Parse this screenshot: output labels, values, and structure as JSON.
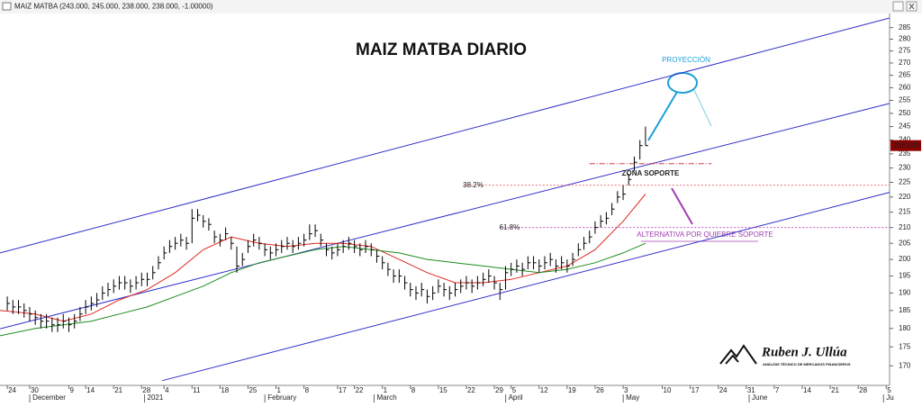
{
  "header": "MAIZ MATBA (243.000, 245.000, 238.000, 238.000, -1.00000)",
  "chart_data": {
    "type": "ohlc",
    "title": "MAIZ MATBA DIARIO",
    "log": true,
    "ylim": [
      165,
      290
    ],
    "yticks": [
      170,
      175,
      180,
      185,
      190,
      195,
      200,
      205,
      210,
      215,
      220,
      225,
      230,
      235,
      240,
      245,
      250,
      255,
      260,
      265,
      270,
      275,
      280,
      285
    ],
    "xlim": [
      -1.3,
      157.6
    ],
    "xticks": [
      {
        "value": 0,
        "label": "24"
      },
      {
        "value": 4,
        "label": "30"
      },
      {
        "value": 11,
        "label": "9"
      },
      {
        "value": 14,
        "label": "14"
      },
      {
        "value": 19,
        "label": "21"
      },
      {
        "value": 24,
        "label": "28"
      },
      {
        "value": 28,
        "label": "4"
      },
      {
        "value": 33,
        "label": "11"
      },
      {
        "value": 38,
        "label": "18"
      },
      {
        "value": 43,
        "label": "25"
      },
      {
        "value": 48,
        "label": "1"
      },
      {
        "value": 53,
        "label": "8"
      },
      {
        "value": 59,
        "label": "17"
      },
      {
        "value": 62,
        "label": "22"
      },
      {
        "value": 67,
        "label": "1"
      },
      {
        "value": 72,
        "label": "8"
      },
      {
        "value": 77,
        "label": "15"
      },
      {
        "value": 82,
        "label": "22"
      },
      {
        "value": 87,
        "label": "29"
      },
      {
        "value": 90,
        "label": "5"
      },
      {
        "value": 95,
        "label": "12"
      },
      {
        "value": 100,
        "label": "19"
      },
      {
        "value": 105,
        "label": "26"
      },
      {
        "value": 110,
        "label": "3"
      },
      {
        "value": 117,
        "label": "10"
      },
      {
        "value": 122,
        "label": "17"
      },
      {
        "value": 127,
        "label": "24"
      },
      {
        "value": 132,
        "label": "31"
      },
      {
        "value": 137,
        "label": "7"
      },
      {
        "value": 142,
        "label": "14"
      },
      {
        "value": 147,
        "label": "21"
      },
      {
        "value": 152,
        "label": "28"
      },
      {
        "value": 157,
        "label": "5"
      }
    ],
    "month_ticks": [
      {
        "value": 4.5,
        "label": "December"
      },
      {
        "value": 25,
        "label": "2021"
      },
      {
        "value": 46.5,
        "label": "February"
      },
      {
        "value": 66,
        "label": "March"
      },
      {
        "value": 89.5,
        "label": "April"
      },
      {
        "value": 110.5,
        "label": "May"
      },
      {
        "value": 133,
        "label": "June"
      },
      {
        "value": 157,
        "label": "Ju"
      }
    ],
    "ohlc": {
      "color": "#000000",
      "high": [
        189,
        188,
        188,
        187,
        186,
        185,
        184,
        184,
        183,
        183,
        184,
        183,
        184,
        186,
        188,
        189,
        190,
        192,
        193,
        194,
        195,
        195,
        194,
        195,
        196,
        196,
        198,
        201,
        204,
        206,
        207,
        208,
        207,
        216,
        216,
        214,
        213,
        209,
        208,
        210,
        207,
        204,
        202,
        206,
        208,
        207,
        205,
        204,
        205,
        206,
        207,
        206,
        207,
        208,
        211,
        211,
        208,
        205,
        204,
        205,
        206,
        207,
        206,
        205,
        206,
        205,
        203,
        201,
        199,
        197,
        197,
        195,
        193,
        192,
        193,
        191,
        192,
        194,
        193,
        192,
        193,
        194,
        195,
        194,
        195,
        196,
        197,
        195,
        193,
        198,
        199,
        200,
        199,
        201,
        201,
        200,
        201,
        202,
        200,
        201,
        200,
        202,
        205,
        207,
        209,
        212,
        214,
        215,
        218,
        222,
        224,
        228,
        234,
        240,
        245
      ],
      "low": [
        185,
        184,
        184,
        183,
        182,
        181,
        180,
        180,
        179,
        179,
        180,
        179,
        180,
        182,
        184,
        185,
        186,
        188,
        189,
        190,
        191,
        191,
        190,
        191,
        192,
        192,
        194,
        197,
        200,
        202,
        203,
        204,
        203,
        205,
        212,
        210,
        209,
        205,
        204,
        206,
        203,
        196,
        198,
        202,
        204,
        203,
        201,
        200,
        201,
        202,
        203,
        202,
        203,
        204,
        206,
        207,
        204,
        201,
        200,
        201,
        202,
        203,
        202,
        201,
        202,
        201,
        199,
        197,
        195,
        193,
        193,
        191,
        189,
        188,
        189,
        187,
        188,
        190,
        189,
        188,
        189,
        190,
        191,
        190,
        191,
        192,
        193,
        191,
        188,
        191,
        195,
        196,
        195,
        197,
        197,
        196,
        197,
        198,
        196,
        197,
        196,
        198,
        201,
        203,
        205,
        208,
        210,
        211,
        214,
        218,
        219,
        224,
        229,
        233,
        238
      ],
      "close": [
        187,
        186,
        186,
        185,
        184,
        183,
        182,
        182,
        181,
        181,
        182,
        181,
        182,
        184,
        186,
        187,
        188,
        190,
        191,
        192,
        193,
        193,
        192,
        193,
        194,
        194,
        196,
        199,
        202,
        204,
        205,
        206,
        205,
        213,
        214,
        212,
        211,
        207,
        206,
        208,
        205,
        198,
        200,
        204,
        206,
        205,
        203,
        202,
        203,
        204,
        205,
        204,
        205,
        206,
        208,
        209,
        206,
        203,
        202,
        203,
        204,
        205,
        204,
        203,
        204,
        203,
        201,
        199,
        197,
        195,
        195,
        193,
        191,
        190,
        191,
        189,
        190,
        192,
        191,
        190,
        191,
        192,
        193,
        192,
        193,
        194,
        195,
        193,
        191,
        196,
        197,
        198,
        197,
        199,
        199,
        198,
        199,
        200,
        198,
        199,
        198,
        200,
        203,
        205,
        207,
        210,
        212,
        213,
        216,
        220,
        221,
        226,
        232,
        238,
        238
      ]
    },
    "overlays": [
      {
        "color": "#e0281e",
        "x": [
          -1.3,
          5,
          10,
          15,
          20,
          25,
          30,
          35,
          40,
          45,
          50,
          55,
          60,
          65,
          70,
          75,
          80,
          85,
          90,
          95,
          100,
          105,
          110,
          114
        ],
        "values": [
          185,
          184,
          182,
          184,
          188,
          191,
          196,
          203,
          207,
          205,
          204,
          205,
          205,
          204,
          200,
          196,
          193,
          193,
          194,
          196,
          198,
          203,
          212,
          221
        ]
      },
      {
        "color": "#1e8c1e",
        "x": [
          -1.3,
          5,
          10,
          15,
          20,
          25,
          30,
          35,
          40,
          45,
          50,
          55,
          60,
          65,
          70,
          75,
          80,
          85,
          90,
          95,
          100,
          105,
          110,
          114
        ],
        "values": [
          178,
          180,
          181,
          182,
          184,
          186,
          189,
          192,
          196,
          199,
          201,
          203,
          204,
          203,
          202,
          200,
          199,
          198,
          197,
          196,
          197,
          199,
          202,
          205
        ]
      }
    ],
    "channels": [
      {
        "color": "#3030c8",
        "x": [
          -1.3,
          157.6
        ],
        "values": [
          202,
          289.2
        ]
      },
      {
        "color": "#3030c8",
        "x": [
          -1.3,
          157.6
        ],
        "values": [
          179.9,
          253.8
        ]
      },
      {
        "color": "#3030c8",
        "x": [
          27.7,
          157.6
        ],
        "values": [
          166.2,
          221.6
        ]
      }
    ],
    "levels": [
      {
        "label": "38.2%",
        "value": 224,
        "x": [
          81.5,
          157.6
        ],
        "color": "#e04050"
      },
      {
        "label": "61.8%",
        "value": 210,
        "x": [
          88,
          157.6
        ],
        "color": "#c040c0"
      }
    ],
    "support_zone": {
      "label": "ZONA SOPORTE",
      "value": 231.5,
      "x": [
        104,
        125.8
      ],
      "color": "#c0202a"
    },
    "last_value": {
      "value": 238,
      "value_label": "238.000"
    },
    "annotations": {
      "projection": "PROYECCIÓN",
      "alternative": "ALTERNATIVA POR QUIEBRE SOPORTE"
    },
    "logo": {
      "name": "Ruben J. Ullúa",
      "tagline": "ANÁLISIS TÉCNICO DE MERCADOS FINANCIEROS"
    }
  }
}
